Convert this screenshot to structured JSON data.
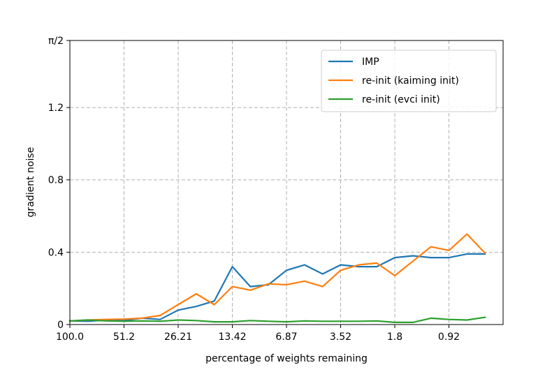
{
  "chart_data": {
    "type": "line",
    "xlabel": "percentage of weights remaining",
    "ylabel": "gradient noise",
    "x_index_range": [
      0,
      24
    ],
    "x_ticks": [
      {
        "i": 0,
        "label": "100.0"
      },
      {
        "i": 3,
        "label": "51.2"
      },
      {
        "i": 6,
        "label": "26.21"
      },
      {
        "i": 9,
        "label": "13.42"
      },
      {
        "i": 12,
        "label": "6.87"
      },
      {
        "i": 15,
        "label": "3.52"
      },
      {
        "i": 18,
        "label": "1.8"
      },
      {
        "i": 21,
        "label": "0.92"
      }
    ],
    "ylim": [
      0,
      1.5708
    ],
    "y_ticks": [
      {
        "v": 0,
        "label": "0"
      },
      {
        "v": 0.4,
        "label": "0.4"
      },
      {
        "v": 0.8,
        "label": "0.8"
      },
      {
        "v": 1.2,
        "label": "1.2"
      },
      {
        "v": 1.5708,
        "label": "π/2"
      }
    ],
    "grid": true,
    "legend_position": "top-right",
    "series": [
      {
        "name": "IMP",
        "color": "#1f77b4",
        "values": [
          0.02,
          0.018,
          0.025,
          0.022,
          0.035,
          0.028,
          0.08,
          0.1,
          0.13,
          0.32,
          0.21,
          0.22,
          0.3,
          0.33,
          0.28,
          0.33,
          0.32,
          0.32,
          0.37,
          0.38,
          0.37,
          0.37,
          0.39,
          0.39
        ]
      },
      {
        "name": "re-init (kaiming init)",
        "color": "#ff7f0e",
        "values": [
          0.02,
          0.025,
          0.028,
          0.03,
          0.035,
          0.05,
          0.11,
          0.17,
          0.11,
          0.21,
          0.19,
          0.225,
          0.22,
          0.24,
          0.21,
          0.3,
          0.33,
          0.34,
          0.27,
          0.35,
          0.43,
          0.41,
          0.5,
          0.395
        ]
      },
      {
        "name": "re-init (evci init)",
        "color": "#2ca02c",
        "values": [
          0.02,
          0.025,
          0.02,
          0.018,
          0.02,
          0.018,
          0.025,
          0.022,
          0.015,
          0.015,
          0.022,
          0.018,
          0.015,
          0.02,
          0.018,
          0.018,
          0.018,
          0.02,
          0.012,
          0.012,
          0.035,
          0.028,
          0.025,
          0.04
        ]
      }
    ]
  }
}
